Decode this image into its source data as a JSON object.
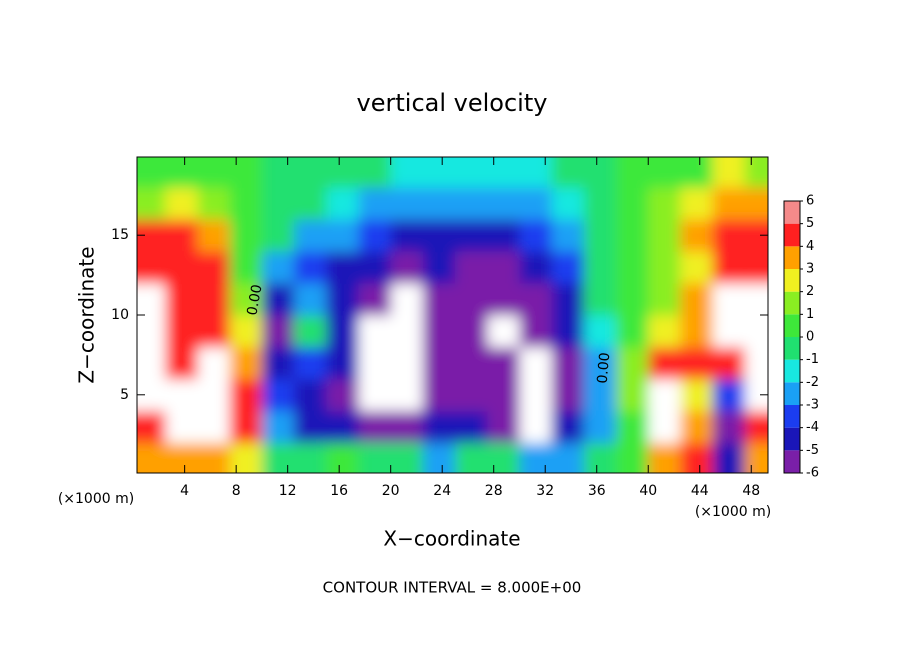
{
  "chart_data": {
    "type": "contourf",
    "title": "vertical velocity",
    "x_label": "X−coordinate",
    "y_label": "Z−coordinate",
    "x_unit_labels": [
      "(×1000 m)",
      "(×1000 m)"
    ],
    "contour_labels": [
      "0.00",
      "0.00"
    ],
    "footer": "CONTOUR INTERVAL = 8.000E+00",
    "xlim": [
      0.3,
      49.3
    ],
    "ylim": [
      0.1,
      19.9
    ],
    "xticks": [
      4,
      8,
      12,
      16,
      20,
      24,
      28,
      32,
      36,
      40,
      44,
      48
    ],
    "yticks": [
      5,
      10,
      15
    ],
    "x": [
      1.25,
      3.75,
      6.25,
      8.75,
      11.25,
      13.75,
      16.25,
      18.75,
      21.25,
      23.75,
      26.25,
      28.75,
      31.25,
      33.75,
      36.25,
      38.75,
      41.25,
      43.75,
      46.25,
      48.75
    ],
    "y": [
      1,
      3,
      5,
      7,
      9,
      11,
      13,
      15,
      17,
      19
    ],
    "z": [
      [
        4,
        4,
        4,
        3,
        0,
        0,
        0.5,
        0,
        0,
        -2,
        0,
        0,
        -2,
        -2,
        0,
        0.5,
        4,
        5,
        -4,
        4
      ],
      [
        5,
        7,
        7,
        5,
        -2,
        -4,
        -4.5,
        -5,
        -5,
        -4.5,
        -4,
        -5,
        -7,
        -4,
        -2,
        1,
        7,
        4,
        -5,
        5
      ],
      [
        7,
        7,
        7,
        4.5,
        -3.5,
        -4,
        -5,
        -7,
        -7,
        -5,
        -5,
        -5.5,
        -6.5,
        -5,
        -2.5,
        2,
        7,
        3,
        -3,
        6.5
      ],
      [
        7,
        5,
        6.5,
        4,
        -4,
        -3,
        -4,
        -7,
        -8,
        -5,
        -5.5,
        -5.5,
        -7,
        -5.5,
        -2,
        1.5,
        5,
        5,
        5,
        7
      ],
      [
        7,
        5,
        5,
        3,
        -5,
        -0.5,
        -4,
        -7,
        -8,
        -5.5,
        -5.8,
        -7,
        -5.8,
        -4.5,
        -1,
        1,
        3,
        4,
        7,
        7
      ],
      [
        6.5,
        5,
        5,
        2,
        -4,
        -2,
        -4.5,
        -5,
        -7,
        -5,
        -5.5,
        -5.5,
        -5.5,
        -4,
        -0.5,
        0.5,
        2,
        4,
        7,
        7
      ],
      [
        5,
        5,
        4.5,
        1,
        -2,
        -3.5,
        -4,
        -4.5,
        -5,
        -4.5,
        -5,
        -5,
        -4.5,
        -3,
        0,
        0.5,
        1.5,
        3,
        5,
        5
      ],
      [
        4.5,
        5,
        4,
        0.5,
        -0.5,
        -2,
        -2.5,
        -3.5,
        -4,
        -4,
        -4,
        -4,
        -3.5,
        -2,
        0,
        0.5,
        2,
        4,
        5,
        4.5
      ],
      [
        2,
        3,
        2,
        0.3,
        0,
        -0.5,
        -1,
        -2,
        -2.5,
        -2.5,
        -2.5,
        -2.5,
        -2,
        -1,
        0,
        0.3,
        1.5,
        3,
        4,
        4
      ],
      [
        0.5,
        0.5,
        0.5,
        0.3,
        0,
        0,
        -0.5,
        -0.5,
        -1,
        -1,
        -1,
        -1,
        -1,
        -0.5,
        0,
        0.3,
        0.5,
        1,
        2.5,
        2
      ]
    ],
    "levels": [
      -6,
      -5,
      -4,
      -3,
      -2,
      -1,
      0,
      1,
      2,
      3,
      4,
      5,
      6
    ],
    "colors": [
      "#7a1fa8",
      "#1a16b8",
      "#1b3df0",
      "#1aa0f5",
      "#18e8e0",
      "#20e070",
      "#3ee83a",
      "#8aee22",
      "#f0f020",
      "#ffa000",
      "#ff2020",
      "#f58a8a"
    ],
    "out_of_range_color": "#ffffff"
  }
}
